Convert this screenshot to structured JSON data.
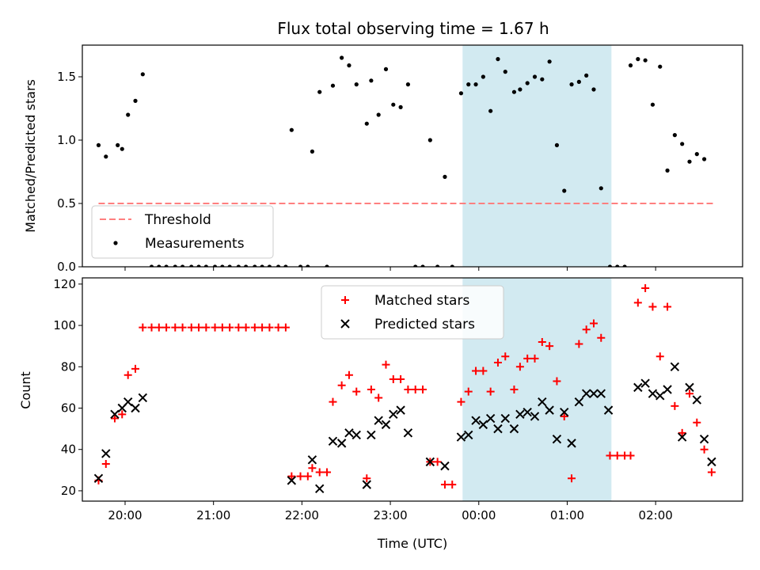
{
  "figure": {
    "title": "Flux total observing time = 1.67 h",
    "xlabel": "Time (UTC)"
  },
  "chart_data": [
    {
      "type": "scatter",
      "ylabel": "Matched/Predicted stars",
      "xlim": [
        "19:31",
        "02:59"
      ],
      "ylim": [
        0,
        1.75
      ],
      "yticks": [
        0.0,
        0.5,
        1.0,
        1.5
      ],
      "ytick_labels": [
        "0.0",
        "0.5",
        "1.0",
        "1.5"
      ],
      "xticks": [
        "20:00",
        "21:00",
        "22:00",
        "23:00",
        "00:00",
        "01:00",
        "02:00"
      ],
      "shaded_span": {
        "x": [
          "23:49",
          "01:30"
        ],
        "color": "#add8e6"
      },
      "threshold": {
        "name": "Threshold",
        "value": 0.5,
        "x": [
          "19:42",
          "02:40"
        ],
        "color": "#ff7f7f",
        "style": "dashed"
      },
      "legend": {
        "position": "lower-left",
        "entries": [
          "Threshold",
          "Measurements"
        ]
      },
      "series": [
        {
          "name": "Measurements",
          "marker": "dot",
          "color": "#000000",
          "points": [
            [
              "19:42",
              0.96
            ],
            [
              "19:47",
              0.87
            ],
            [
              "19:55",
              0.96
            ],
            [
              "19:58",
              0.93
            ],
            [
              "20:02",
              1.2
            ],
            [
              "20:07",
              1.31
            ],
            [
              "20:12",
              1.52
            ],
            [
              "20:18",
              0
            ],
            [
              "20:23",
              0
            ],
            [
              "20:28",
              0
            ],
            [
              "20:34",
              0
            ],
            [
              "20:39",
              0
            ],
            [
              "20:45",
              0
            ],
            [
              "20:50",
              0
            ],
            [
              "20:55",
              0
            ],
            [
              "21:01",
              0
            ],
            [
              "21:06",
              0
            ],
            [
              "21:11",
              0
            ],
            [
              "21:17",
              0
            ],
            [
              "21:22",
              0
            ],
            [
              "21:28",
              0
            ],
            [
              "21:33",
              0
            ],
            [
              "21:38",
              0
            ],
            [
              "21:44",
              0
            ],
            [
              "21:49",
              0
            ],
            [
              "21:53",
              1.08
            ],
            [
              "21:59",
              0
            ],
            [
              "22:04",
              0
            ],
            [
              "22:07",
              0.91
            ],
            [
              "22:12",
              1.38
            ],
            [
              "22:17",
              0
            ],
            [
              "22:21",
              1.43
            ],
            [
              "22:27",
              1.65
            ],
            [
              "22:32",
              1.59
            ],
            [
              "22:37",
              1.44
            ],
            [
              "22:44",
              1.13
            ],
            [
              "22:47",
              1.47
            ],
            [
              "22:52",
              1.2
            ],
            [
              "22:57",
              1.56
            ],
            [
              "23:02",
              1.28
            ],
            [
              "23:07",
              1.26
            ],
            [
              "23:12",
              1.44
            ],
            [
              "23:17",
              0
            ],
            [
              "23:22",
              0
            ],
            [
              "23:27",
              1.0
            ],
            [
              "23:32",
              0
            ],
            [
              "23:37",
              0.71
            ],
            [
              "23:42",
              0
            ],
            [
              "23:48",
              1.37
            ],
            [
              "23:53",
              1.44
            ],
            [
              "23:58",
              1.44
            ],
            [
              "00:03",
              1.5
            ],
            [
              "00:08",
              1.23
            ],
            [
              "00:13",
              1.64
            ],
            [
              "00:18",
              1.54
            ],
            [
              "00:24",
              1.38
            ],
            [
              "00:28",
              1.4
            ],
            [
              "00:33",
              1.45
            ],
            [
              "00:38",
              1.5
            ],
            [
              "00:43",
              1.48
            ],
            [
              "00:48",
              1.62
            ],
            [
              "00:53",
              0.96
            ],
            [
              "00:58",
              0.6
            ],
            [
              "01:03",
              1.44
            ],
            [
              "01:08",
              1.46
            ],
            [
              "01:13",
              1.51
            ],
            [
              "01:18",
              1.4
            ],
            [
              "01:23",
              0.62
            ],
            [
              "01:29",
              0
            ],
            [
              "01:34",
              0
            ],
            [
              "01:39",
              0
            ],
            [
              "01:43",
              1.59
            ],
            [
              "01:48",
              1.64
            ],
            [
              "01:53",
              1.63
            ],
            [
              "01:58",
              1.28
            ],
            [
              "02:03",
              1.58
            ],
            [
              "02:08",
              0.76
            ],
            [
              "02:13",
              1.04
            ],
            [
              "02:18",
              0.97
            ],
            [
              "02:23",
              0.83
            ],
            [
              "02:28",
              0.89
            ],
            [
              "02:33",
              0.85
            ]
          ]
        }
      ]
    },
    {
      "type": "scatter",
      "ylabel": "Count",
      "xlabel": "Time (UTC)",
      "xlim": [
        "19:31",
        "02:59"
      ],
      "ylim": [
        15,
        123
      ],
      "yticks": [
        20,
        40,
        60,
        80,
        100,
        120
      ],
      "ytick_labels": [
        "20",
        "40",
        "60",
        "80",
        "100",
        "120"
      ],
      "xticks": [
        "20:00",
        "21:00",
        "22:00",
        "23:00",
        "00:00",
        "01:00",
        "02:00"
      ],
      "shaded_span": {
        "x": [
          "23:49",
          "01:30"
        ],
        "color": "#add8e6"
      },
      "legend": {
        "position": "upper-center",
        "entries": [
          "Matched stars",
          "Predicted stars"
        ]
      },
      "series": [
        {
          "name": "Matched stars",
          "marker": "plus",
          "color": "#ff0000",
          "points": [
            [
              "19:42",
              25
            ],
            [
              "19:47",
              33
            ],
            [
              "19:53",
              55
            ],
            [
              "19:58",
              57
            ],
            [
              "20:02",
              76
            ],
            [
              "20:07",
              79
            ],
            [
              "20:12",
              99
            ],
            [
              "20:18",
              99
            ],
            [
              "20:23",
              99
            ],
            [
              "20:28",
              99
            ],
            [
              "20:34",
              99
            ],
            [
              "20:39",
              99
            ],
            [
              "20:45",
              99
            ],
            [
              "20:50",
              99
            ],
            [
              "20:55",
              99
            ],
            [
              "21:01",
              99
            ],
            [
              "21:06",
              99
            ],
            [
              "21:11",
              99
            ],
            [
              "21:17",
              99
            ],
            [
              "21:22",
              99
            ],
            [
              "21:28",
              99
            ],
            [
              "21:33",
              99
            ],
            [
              "21:38",
              99
            ],
            [
              "21:44",
              99
            ],
            [
              "21:49",
              99
            ],
            [
              "21:53",
              27
            ],
            [
              "21:59",
              27
            ],
            [
              "22:04",
              27
            ],
            [
              "22:07",
              31
            ],
            [
              "22:12",
              29
            ],
            [
              "22:17",
              29
            ],
            [
              "22:21",
              63
            ],
            [
              "22:27",
              71
            ],
            [
              "22:32",
              76
            ],
            [
              "22:37",
              68
            ],
            [
              "22:44",
              26
            ],
            [
              "22:47",
              69
            ],
            [
              "22:52",
              65
            ],
            [
              "22:57",
              81
            ],
            [
              "23:02",
              74
            ],
            [
              "23:07",
              74
            ],
            [
              "23:12",
              69
            ],
            [
              "23:17",
              69
            ],
            [
              "23:22",
              69
            ],
            [
              "23:27",
              34
            ],
            [
              "23:32",
              34
            ],
            [
              "23:37",
              23
            ],
            [
              "23:42",
              23
            ],
            [
              "23:48",
              63
            ],
            [
              "23:53",
              68
            ],
            [
              "23:58",
              78
            ],
            [
              "00:03",
              78
            ],
            [
              "00:08",
              68
            ],
            [
              "00:13",
              82
            ],
            [
              "00:18",
              85
            ],
            [
              "00:24",
              69
            ],
            [
              "00:28",
              80
            ],
            [
              "00:33",
              84
            ],
            [
              "00:38",
              84
            ],
            [
              "00:43",
              92
            ],
            [
              "00:48",
              90
            ],
            [
              "00:53",
              73
            ],
            [
              "00:58",
              56
            ],
            [
              "01:03",
              26
            ],
            [
              "01:08",
              91
            ],
            [
              "01:13",
              98
            ],
            [
              "01:18",
              101
            ],
            [
              "01:23",
              94
            ],
            [
              "01:29",
              37
            ],
            [
              "01:34",
              37
            ],
            [
              "01:39",
              37
            ],
            [
              "01:43",
              37
            ],
            [
              "01:48",
              111
            ],
            [
              "01:53",
              118
            ],
            [
              "01:58",
              109
            ],
            [
              "02:03",
              85
            ],
            [
              "02:08",
              109
            ],
            [
              "02:13",
              61
            ],
            [
              "02:18",
              48
            ],
            [
              "02:23",
              67
            ],
            [
              "02:28",
              53
            ],
            [
              "02:33",
              40
            ],
            [
              "02:38",
              29
            ]
          ]
        },
        {
          "name": "Predicted stars",
          "marker": "x",
          "color": "#000000",
          "points": [
            [
              "19:42",
              26
            ],
            [
              "19:47",
              38
            ],
            [
              "19:53",
              57
            ],
            [
              "19:58",
              60
            ],
            [
              "20:02",
              63
            ],
            [
              "20:07",
              60
            ],
            [
              "20:12",
              65
            ],
            [
              "21:53",
              25
            ],
            [
              "22:07",
              35
            ],
            [
              "22:12",
              21
            ],
            [
              "22:21",
              44
            ],
            [
              "22:27",
              43
            ],
            [
              "22:32",
              48
            ],
            [
              "22:37",
              47
            ],
            [
              "22:44",
              23
            ],
            [
              "22:47",
              47
            ],
            [
              "22:52",
              54
            ],
            [
              "22:57",
              52
            ],
            [
              "23:02",
              57
            ],
            [
              "23:07",
              59
            ],
            [
              "23:12",
              48
            ],
            [
              "23:27",
              34
            ],
            [
              "23:37",
              32
            ],
            [
              "23:48",
              46
            ],
            [
              "23:53",
              47
            ],
            [
              "23:58",
              54
            ],
            [
              "00:03",
              52
            ],
            [
              "00:08",
              55
            ],
            [
              "00:13",
              50
            ],
            [
              "00:18",
              55
            ],
            [
              "00:24",
              50
            ],
            [
              "00:28",
              57
            ],
            [
              "00:33",
              58
            ],
            [
              "00:38",
              56
            ],
            [
              "00:43",
              63
            ],
            [
              "00:48",
              59
            ],
            [
              "00:53",
              45
            ],
            [
              "00:58",
              58
            ],
            [
              "01:03",
              43
            ],
            [
              "01:08",
              63
            ],
            [
              "01:13",
              67
            ],
            [
              "01:18",
              67
            ],
            [
              "01:23",
              67
            ],
            [
              "01:28",
              59
            ],
            [
              "01:48",
              70
            ],
            [
              "01:53",
              72
            ],
            [
              "01:58",
              67
            ],
            [
              "02:03",
              66
            ],
            [
              "02:08",
              69
            ],
            [
              "02:13",
              80
            ],
            [
              "02:18",
              46
            ],
            [
              "02:23",
              70
            ],
            [
              "02:28",
              64
            ],
            [
              "02:33",
              45
            ],
            [
              "02:38",
              34
            ]
          ]
        }
      ]
    }
  ]
}
